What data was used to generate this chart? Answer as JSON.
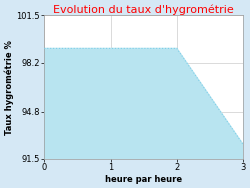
{
  "title": "Evolution du taux d'hygrométrie",
  "title_color": "#ff0000",
  "xlabel": "heure par heure",
  "ylabel": "Taux hygrométrie %",
  "x_data": [
    0,
    2,
    3
  ],
  "y_data": [
    99.2,
    99.2,
    92.5
  ],
  "ylim": [
    91.5,
    101.5
  ],
  "xlim": [
    0,
    3
  ],
  "yticks": [
    91.5,
    94.8,
    98.2,
    101.5
  ],
  "xticks": [
    0,
    1,
    2,
    3
  ],
  "line_color": "#7ecfe8",
  "fill_color": "#b8e4f0",
  "bg_color": "#d5e8f5",
  "plot_bg_color": "#ffffff",
  "grid_color": "#cccccc",
  "title_fontsize": 8,
  "label_fontsize": 6,
  "tick_fontsize": 6
}
